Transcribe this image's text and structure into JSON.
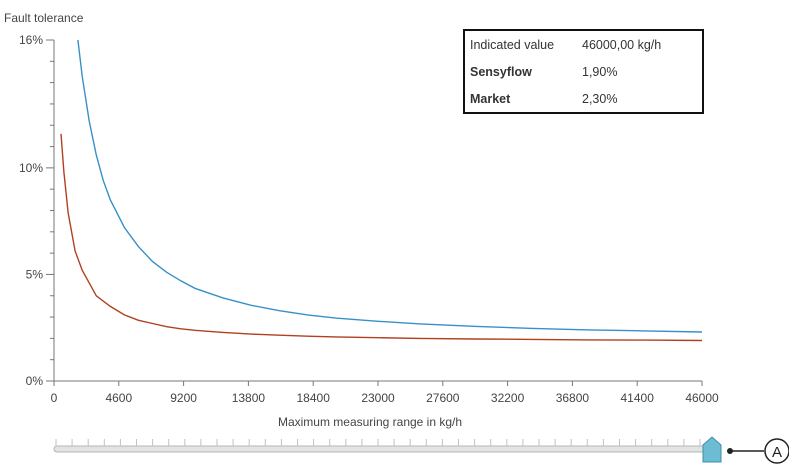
{
  "chart_data": {
    "type": "line",
    "title": "",
    "ylabel": "Fault tolerance",
    "xlabel": "Maximum measuring range in kg/h",
    "xlim": [
      0,
      46000
    ],
    "ylim": [
      0,
      16
    ],
    "x_ticks": [
      "0",
      "4600",
      "9200",
      "13800",
      "18400",
      "23000",
      "27600",
      "32200",
      "36800",
      "41400",
      "46000"
    ],
    "y_ticks": [
      {
        "value": 0,
        "label": "0%"
      },
      {
        "value": 5,
        "label": "5%"
      },
      {
        "value": 10,
        "label": "10%"
      },
      {
        "value": 16,
        "label": "16%"
      }
    ],
    "grid": false,
    "legend": {
      "position": "top-right",
      "indicated_label": "Indicated value",
      "indicated_value": "46000,00 kg/h",
      "entries": [
        {
          "name": "Sensyflow",
          "value": "1,90%",
          "color": "#b2401f"
        },
        {
          "name": "Market",
          "value": "2,30%",
          "color": "#3890c8"
        }
      ]
    },
    "series": [
      {
        "name": "Sensyflow",
        "color": "#b2401f",
        "points": [
          [
            500,
            11.6
          ],
          [
            700,
            9.8
          ],
          [
            1000,
            7.9
          ],
          [
            1500,
            6.1
          ],
          [
            2000,
            5.2
          ],
          [
            3000,
            4.0
          ],
          [
            4000,
            3.5
          ],
          [
            5000,
            3.1
          ],
          [
            6000,
            2.85
          ],
          [
            7000,
            2.7
          ],
          [
            8000,
            2.55
          ],
          [
            9000,
            2.45
          ],
          [
            10000,
            2.38
          ],
          [
            12000,
            2.28
          ],
          [
            14000,
            2.2
          ],
          [
            16000,
            2.15
          ],
          [
            18000,
            2.1
          ],
          [
            20000,
            2.07
          ],
          [
            23000,
            2.03
          ],
          [
            26000,
            2.0
          ],
          [
            30000,
            1.97
          ],
          [
            34000,
            1.95
          ],
          [
            38000,
            1.93
          ],
          [
            42000,
            1.92
          ],
          [
            46000,
            1.9
          ]
        ]
      },
      {
        "name": "Market",
        "color": "#3890c8",
        "points": [
          [
            1700,
            16.0
          ],
          [
            2000,
            14.3
          ],
          [
            2500,
            12.2
          ],
          [
            3000,
            10.6
          ],
          [
            3500,
            9.4
          ],
          [
            4000,
            8.5
          ],
          [
            5000,
            7.2
          ],
          [
            6000,
            6.3
          ],
          [
            7000,
            5.6
          ],
          [
            8000,
            5.1
          ],
          [
            9000,
            4.7
          ],
          [
            10000,
            4.35
          ],
          [
            12000,
            3.9
          ],
          [
            14000,
            3.55
          ],
          [
            16000,
            3.3
          ],
          [
            18000,
            3.1
          ],
          [
            20000,
            2.95
          ],
          [
            23000,
            2.8
          ],
          [
            26000,
            2.68
          ],
          [
            30000,
            2.56
          ],
          [
            34000,
            2.47
          ],
          [
            38000,
            2.4
          ],
          [
            42000,
            2.35
          ],
          [
            46000,
            2.3
          ]
        ]
      }
    ]
  },
  "slider": {
    "value": 46000,
    "marker_label": "A",
    "accent_color": "#4aa7c4"
  }
}
